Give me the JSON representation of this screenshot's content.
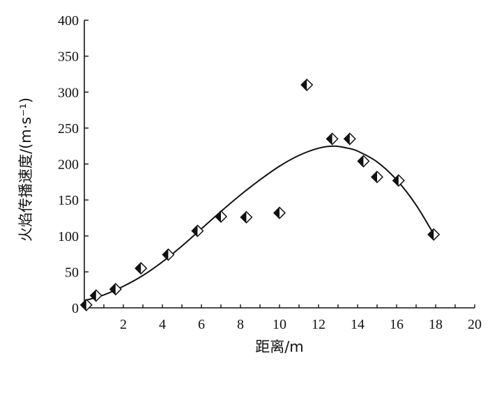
{
  "chart_data": {
    "type": "scatter",
    "title": "",
    "xlabel": "距离/m",
    "ylabel": "火焰传播速度/(m·s⁻¹)",
    "xlim": [
      0,
      20
    ],
    "ylim": [
      0,
      400
    ],
    "x_ticks": [
      "2",
      "4",
      "6",
      "8",
      "10",
      "12",
      "14",
      "16",
      "18",
      "20"
    ],
    "y_ticks": [
      "0",
      "50",
      "100",
      "150",
      "200",
      "250",
      "300",
      "350",
      "400"
    ],
    "grid": false,
    "marker": "half-filled diamond",
    "series": [
      {
        "values": [
          {
            "x": 0.1,
            "y": 4
          },
          {
            "x": 0.6,
            "y": 17
          },
          {
            "x": 1.6,
            "y": 26
          },
          {
            "x": 2.9,
            "y": 55
          },
          {
            "x": 4.3,
            "y": 74
          },
          {
            "x": 5.8,
            "y": 107
          },
          {
            "x": 7.0,
            "y": 127
          },
          {
            "x": 8.3,
            "y": 126
          },
          {
            "x": 10.0,
            "y": 132
          },
          {
            "x": 11.4,
            "y": 310
          },
          {
            "x": 12.7,
            "y": 235
          },
          {
            "x": 13.6,
            "y": 235
          },
          {
            "x": 14.3,
            "y": 204
          },
          {
            "x": 15.0,
            "y": 182
          },
          {
            "x": 16.1,
            "y": 177
          },
          {
            "x": 17.9,
            "y": 102
          }
        ]
      }
    ],
    "fit_curve": [
      {
        "x": 0,
        "y": 10
      },
      {
        "x": 1,
        "y": 18
      },
      {
        "x": 2,
        "y": 30
      },
      {
        "x": 3,
        "y": 45
      },
      {
        "x": 4,
        "y": 64
      },
      {
        "x": 5,
        "y": 86
      },
      {
        "x": 6,
        "y": 110
      },
      {
        "x": 7,
        "y": 134
      },
      {
        "x": 8,
        "y": 157
      },
      {
        "x": 9,
        "y": 178
      },
      {
        "x": 10,
        "y": 197
      },
      {
        "x": 11,
        "y": 212
      },
      {
        "x": 12,
        "y": 222
      },
      {
        "x": 12.8,
        "y": 225
      },
      {
        "x": 13.5,
        "y": 222
      },
      {
        "x": 14,
        "y": 218
      },
      {
        "x": 15,
        "y": 203
      },
      {
        "x": 16,
        "y": 178
      },
      {
        "x": 17,
        "y": 143
      },
      {
        "x": 18,
        "y": 98
      }
    ]
  }
}
